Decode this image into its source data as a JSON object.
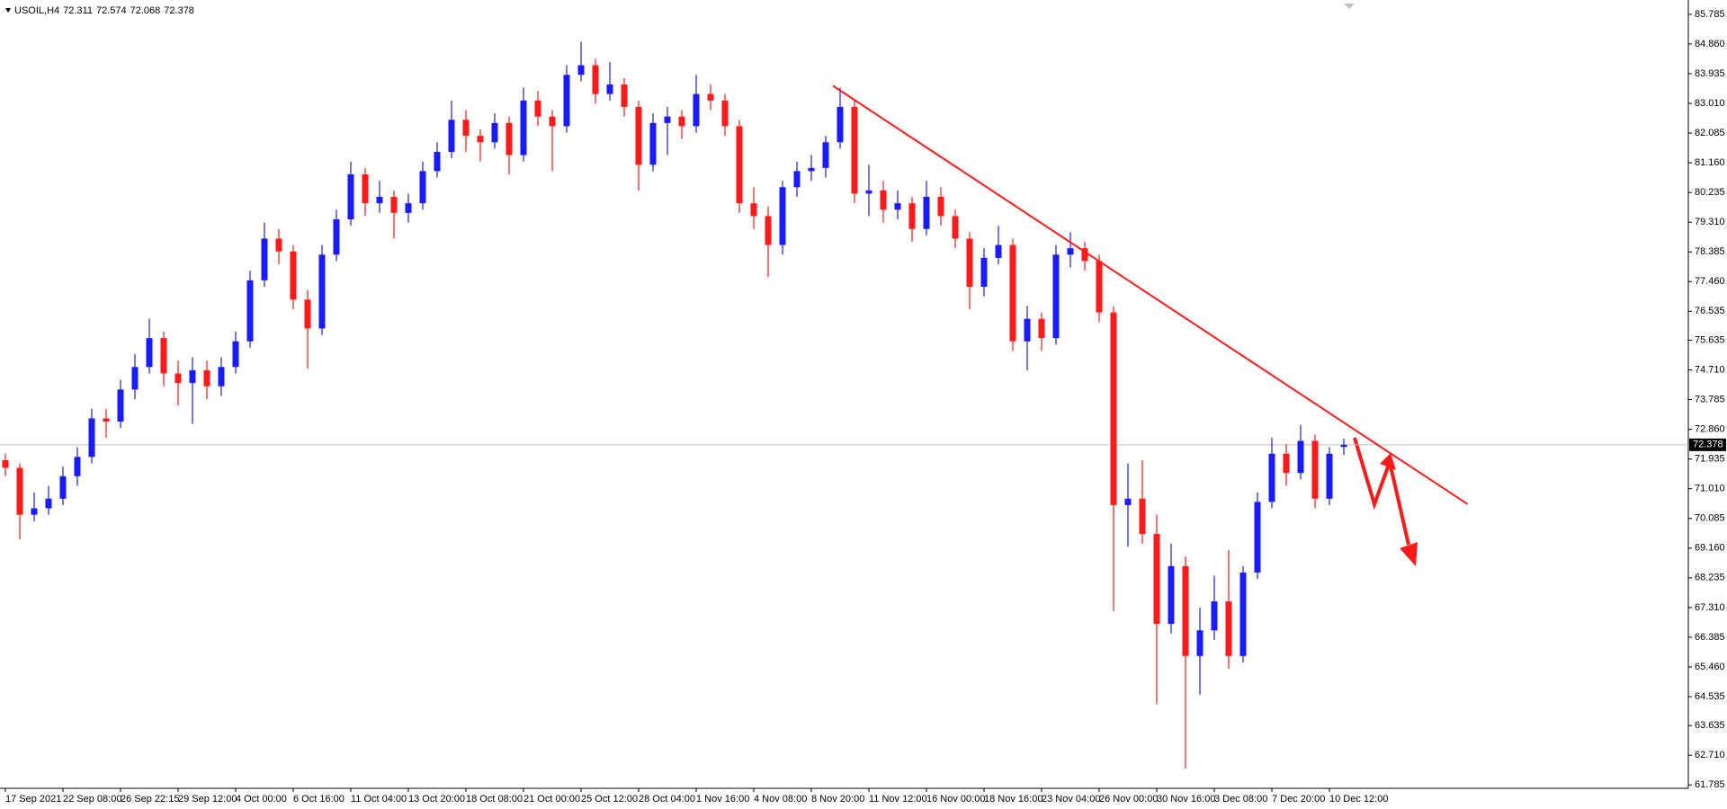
{
  "chart_data": {
    "type": "candlestick",
    "title": "USOIL,H4",
    "up_color": "#1a1aff",
    "down_color": "#ff1a1a",
    "trendline_color": "#ff1a1a",
    "trendline": [
      83.56,
      70.53
    ],
    "x": [
      "17 Sep 2021",
      null,
      null,
      null,
      "22 Sep 08:00",
      null,
      null,
      null,
      "26 Sep 22:15",
      null,
      null,
      null,
      "29 Sep 12:00",
      null,
      null,
      null,
      "4 Oct 00:00",
      null,
      null,
      null,
      "6 Oct 16:00",
      null,
      null,
      null,
      "11 Oct 04:00",
      null,
      null,
      null,
      "13 Oct 20:00",
      null,
      null,
      null,
      "18 Oct 08:00",
      null,
      null,
      null,
      "21 Oct 00:00",
      null,
      null,
      null,
      "25 Oct 12:00",
      null,
      null,
      null,
      "28 Oct 04:00",
      null,
      null,
      null,
      "1 Nov 16:00",
      null,
      null,
      null,
      "4 Nov 08:00",
      null,
      null,
      null,
      "8 Nov 20:00",
      null,
      null,
      null,
      "11 Nov 12:00",
      null,
      null,
      null,
      "16 Nov 00:00",
      null,
      null,
      null,
      "18 Nov 16:00",
      null,
      null,
      null,
      "23 Nov 04:00",
      null,
      null,
      null,
      "26 Nov 00:00",
      null,
      null,
      null,
      "30 Nov 16:00",
      null,
      null,
      null,
      "3 Dec 08:00",
      null,
      null,
      null,
      "7 Dec 20:00",
      null,
      null,
      null,
      "10 Dec 12:00",
      null
    ],
    "open": [
      71.9,
      71.66,
      70.2,
      70.4,
      70.7,
      71.4,
      72.0,
      73.2,
      73.1,
      74.1,
      74.8,
      75.7,
      74.6,
      74.3,
      74.7,
      74.2,
      74.8,
      75.6,
      77.5,
      78.8,
      78.4,
      76.9,
      76.0,
      78.3,
      79.4,
      80.8,
      79.9,
      80.1,
      79.6,
      79.9,
      80.9,
      81.5,
      82.5,
      82.0,
      81.8,
      82.4,
      81.4,
      83.1,
      82.6,
      82.3,
      83.9,
      84.2,
      83.3,
      83.6,
      82.9,
      81.1,
      82.4,
      82.6,
      82.3,
      83.3,
      83.1,
      82.3,
      79.9,
      79.5,
      78.6,
      80.4,
      80.9,
      81.0,
      81.8,
      82.9,
      80.2,
      80.3,
      79.7,
      79.9,
      79.1,
      80.1,
      79.5,
      78.8,
      77.3,
      78.2,
      78.6,
      75.6,
      76.3,
      75.7,
      78.3,
      78.5,
      78.1,
      76.5,
      70.5,
      70.7,
      69.6,
      66.8,
      68.6,
      65.8,
      66.6,
      67.5,
      65.8,
      68.4,
      70.6,
      72.1,
      71.5,
      72.5,
      70.7,
      72.311
    ],
    "high": [
      72.1,
      71.8,
      70.9,
      71.1,
      71.7,
      72.3,
      73.5,
      73.5,
      74.4,
      75.2,
      76.3,
      75.9,
      75.0,
      75.1,
      75.0,
      75.1,
      75.9,
      77.8,
      79.3,
      79.1,
      78.6,
      77.2,
      78.6,
      79.7,
      81.2,
      81.0,
      80.6,
      80.3,
      80.2,
      81.2,
      81.8,
      83.1,
      82.8,
      82.2,
      82.7,
      82.6,
      83.5,
      83.4,
      82.8,
      84.2,
      84.93,
      84.4,
      84.3,
      83.8,
      83.1,
      82.7,
      82.9,
      82.8,
      83.9,
      83.6,
      83.3,
      82.5,
      80.4,
      79.8,
      80.6,
      81.2,
      81.4,
      82.0,
      83.5,
      83.1,
      81.1,
      80.6,
      80.3,
      80.1,
      80.6,
      80.4,
      79.7,
      79.0,
      78.5,
      79.2,
      78.8,
      76.7,
      76.5,
      78.6,
      79.0,
      78.7,
      78.3,
      76.7,
      71.8,
      71.9,
      70.2,
      69.3,
      68.9,
      67.3,
      68.3,
      69.1,
      68.6,
      70.9,
      72.6,
      72.4,
      73.0,
      72.7,
      72.3,
      72.574
    ],
    "low": [
      71.4,
      69.43,
      70.0,
      70.2,
      70.5,
      71.1,
      71.8,
      72.6,
      72.9,
      73.8,
      74.6,
      74.2,
      73.6,
      73.03,
      73.8,
      73.9,
      74.6,
      75.4,
      77.3,
      78.0,
      76.6,
      74.75,
      75.8,
      78.1,
      79.2,
      79.5,
      79.6,
      78.8,
      79.3,
      79.7,
      80.7,
      81.3,
      81.5,
      81.2,
      81.6,
      80.8,
      81.2,
      82.3,
      80.9,
      82.1,
      83.7,
      83.0,
      83.1,
      82.6,
      80.3,
      80.9,
      81.4,
      81.9,
      82.1,
      82.8,
      82.0,
      79.6,
      79.1,
      77.6,
      78.3,
      80.1,
      80.6,
      80.7,
      81.6,
      79.9,
      79.5,
      79.3,
      79.4,
      78.7,
      78.9,
      79.2,
      78.5,
      76.6,
      77.0,
      78.0,
      75.3,
      74.7,
      75.3,
      75.5,
      77.9,
      77.8,
      76.2,
      67.2,
      69.2,
      69.3,
      64.3,
      66.5,
      62.3,
      64.6,
      66.3,
      65.4,
      65.6,
      68.2,
      70.4,
      71.1,
      71.3,
      70.4,
      70.5,
      72.068
    ],
    "close": [
      71.66,
      70.2,
      70.4,
      70.7,
      71.4,
      72.0,
      73.2,
      73.1,
      74.1,
      74.8,
      75.7,
      74.6,
      74.3,
      74.7,
      74.2,
      74.8,
      75.6,
      77.5,
      78.8,
      78.4,
      76.9,
      76.0,
      78.3,
      79.4,
      80.8,
      79.9,
      80.1,
      79.6,
      79.9,
      80.9,
      81.5,
      82.5,
      82.0,
      81.8,
      82.4,
      81.4,
      83.1,
      82.6,
      82.3,
      83.9,
      84.2,
      83.3,
      83.6,
      82.9,
      81.1,
      82.4,
      82.6,
      82.3,
      83.3,
      83.1,
      82.3,
      79.9,
      79.5,
      78.6,
      80.4,
      80.9,
      81.0,
      81.8,
      82.9,
      80.2,
      80.3,
      79.7,
      79.9,
      79.1,
      80.1,
      79.5,
      78.8,
      77.3,
      78.2,
      78.6,
      75.6,
      76.3,
      75.7,
      78.3,
      78.5,
      78.1,
      76.5,
      70.5,
      70.7,
      69.6,
      66.8,
      68.6,
      65.8,
      66.6,
      67.5,
      65.8,
      68.4,
      70.6,
      72.1,
      71.5,
      72.5,
      70.7,
      72.1,
      72.378
    ],
    "ylim": [
      61.68,
      86.09
    ],
    "yticks": [
      85.785,
      {
        "value": 84.86,
        "label": "84.860"
      },
      83.935,
      {
        "value": 83.01,
        "label": "83.010"
      },
      82.085,
      {
        "value": 81.16,
        "label": "81.160"
      },
      80.235,
      {
        "value": 79.31,
        "label": "79.310"
      },
      78.385,
      {
        "value": 77.46,
        "label": "77.460"
      },
      76.535,
      75.635,
      {
        "value": 74.71,
        "label": "74.710"
      },
      73.785,
      {
        "value": 72.86,
        "label": "72.860"
      },
      71.935,
      {
        "value": 71.01,
        "label": "71.010"
      },
      70.085,
      {
        "value": 69.16,
        "label": "69.160"
      },
      68.235,
      {
        "value": 67.31,
        "label": "67.310"
      },
      66.385,
      {
        "value": 65.46,
        "label": "65.460"
      },
      64.535,
      63.635,
      {
        "value": 62.71,
        "label": "62.710"
      },
      61.785
    ],
    "grid": false
  }
}
